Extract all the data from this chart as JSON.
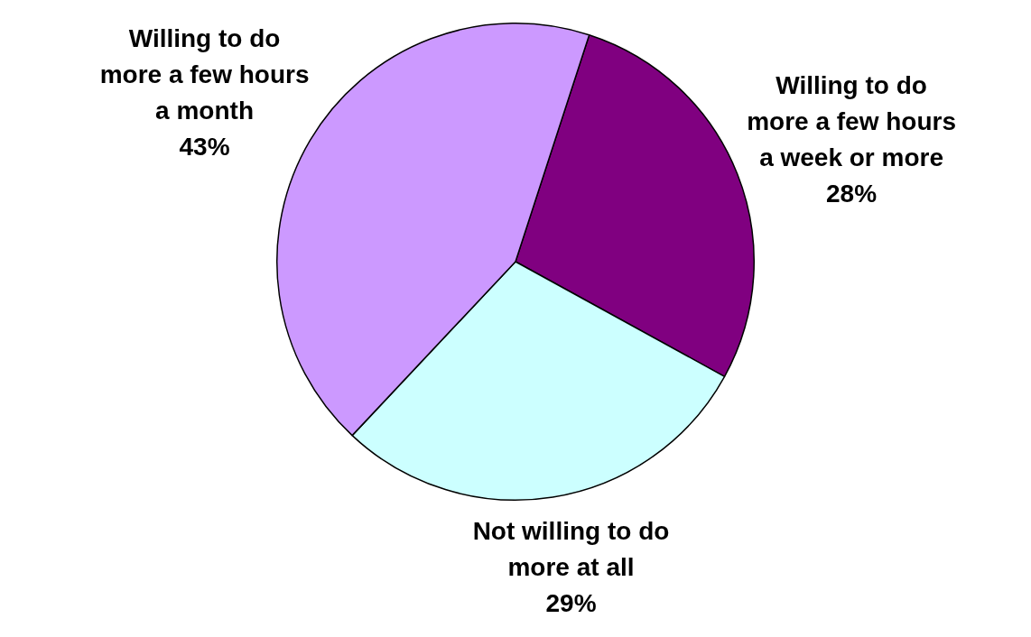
{
  "chart_data": {
    "type": "pie",
    "categories": [
      "Willing to do more a few hours a week or more",
      "Not willing to do more at all",
      "Willing to do more a few hours a month"
    ],
    "values": [
      28,
      29,
      43
    ],
    "colors": [
      "#800080",
      "#ccffff",
      "#cc99ff"
    ],
    "value_labels": [
      "28%",
      "29%",
      "43%"
    ],
    "legend": false
  }
}
